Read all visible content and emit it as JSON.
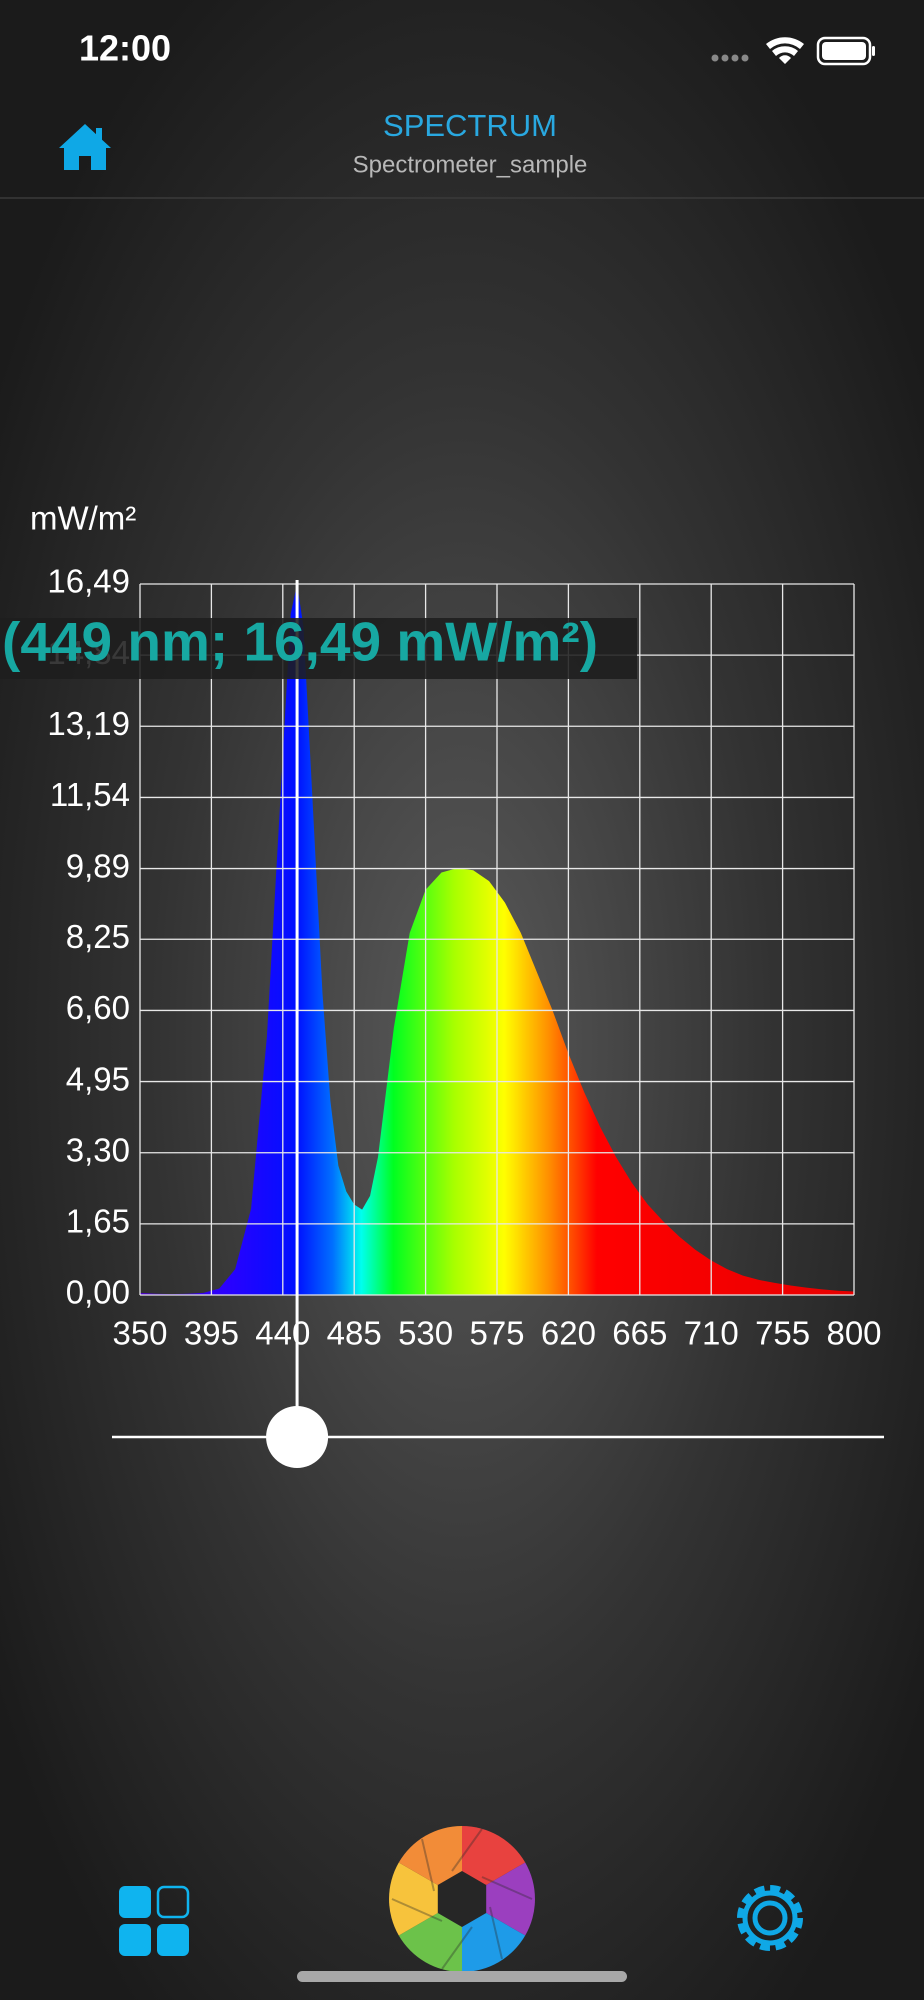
{
  "status_bar": {
    "time": "12:00"
  },
  "header": {
    "title": "SPECTRUM",
    "subtitle": "Spectrometer_sample"
  },
  "chart_data": {
    "type": "area",
    "y_label": "mW/m²",
    "x": [
      350,
      360,
      370,
      380,
      390,
      400,
      410,
      420,
      430,
      440,
      445,
      449,
      453,
      458,
      465,
      470,
      475,
      480,
      485,
      490,
      495,
      500,
      510,
      520,
      530,
      540,
      550,
      560,
      570,
      580,
      590,
      600,
      610,
      620,
      630,
      640,
      650,
      660,
      670,
      680,
      690,
      700,
      710,
      720,
      730,
      740,
      750,
      760,
      770,
      780,
      790,
      800
    ],
    "values": [
      0.05,
      0.03,
      0.02,
      0.03,
      0.05,
      0.15,
      0.6,
      2.0,
      6.0,
      12.5,
      15.8,
      16.49,
      15.5,
      12.0,
      7.0,
      4.5,
      3.0,
      2.4,
      2.1,
      1.98,
      2.3,
      3.2,
      6.2,
      8.4,
      9.4,
      9.8,
      9.9,
      9.85,
      9.6,
      9.1,
      8.4,
      7.5,
      6.6,
      5.6,
      4.7,
      3.9,
      3.2,
      2.6,
      2.1,
      1.7,
      1.35,
      1.05,
      0.8,
      0.6,
      0.45,
      0.35,
      0.28,
      0.22,
      0.17,
      0.13,
      0.1,
      0.08
    ],
    "xlim": [
      350,
      800
    ],
    "ylim": [
      0,
      16.49
    ],
    "xticks": [
      350,
      395,
      440,
      485,
      530,
      575,
      620,
      665,
      710,
      755,
      800
    ],
    "yticks": [
      {
        "value": 0,
        "label": "0,00"
      },
      {
        "value": 1.65,
        "label": "1,65"
      },
      {
        "value": 3.3,
        "label": "3,30"
      },
      {
        "value": 4.95,
        "label": "4,95"
      },
      {
        "value": 6.6,
        "label": "6,60"
      },
      {
        "value": 8.25,
        "label": "8,25"
      },
      {
        "value": 9.89,
        "label": "9,89"
      },
      {
        "value": 11.54,
        "label": "11,54"
      },
      {
        "value": 13.19,
        "label": "13,19"
      },
      {
        "value": 14.84,
        "label": "14,84"
      },
      {
        "value": 16.49,
        "label": "16,49"
      }
    ],
    "grid": true,
    "cursor": {
      "x": 449,
      "y": 16.49,
      "label": "(449 nm; 16,49 mW/m²)"
    }
  }
}
